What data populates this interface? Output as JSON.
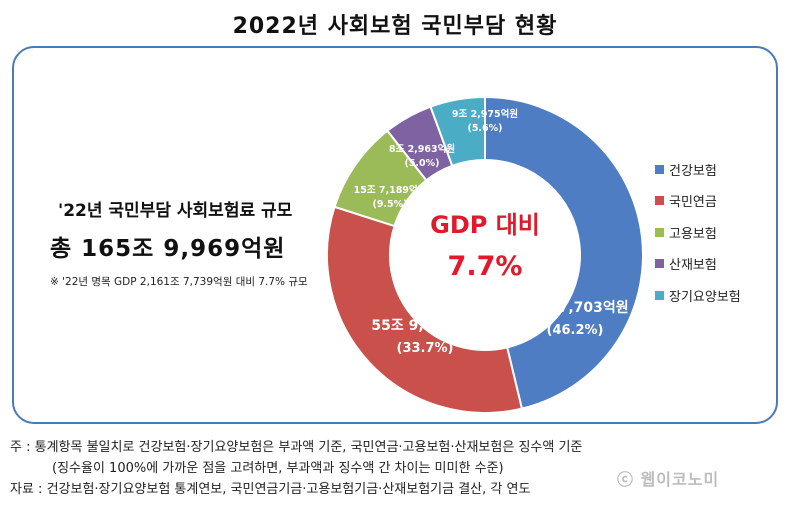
{
  "title": "2022년 사회보험 국민부담 현황",
  "summary": {
    "heading": "'22년 국민부담 사회보험료 규모",
    "total": "총 165조 9,969억원",
    "note": "※ '22년 명목 GDP 2,161조 7,739억원 대비 7.7% 규모"
  },
  "center_label": {
    "line1": "GDP 대비",
    "line2": "7.7%"
  },
  "footnotes": {
    "note_line1": "주 : 통계항목 불일치로 건강보험·장기요양보험은 부과액 기준, 국민연금·고용보험·산재보험은 징수액 기준",
    "note_line2": "(징수율이 100%에 가까운 점을 고려하면, 부과액과 징수액 간 차이는 미미한 수준)",
    "source": "자료 : 건강보험·장기요양보험 통계연보, 국민연금기금·고용보험기금·산재보험기금 결산, 각 연도"
  },
  "watermark": "ⓒ 웹이코노미",
  "chart_data": {
    "type": "pie",
    "donut": true,
    "unit": "억원",
    "categories": [
      "건강보험",
      "국민연금",
      "고용보험",
      "산재보험",
      "장기요양보험"
    ],
    "values": [
      767703,
      559140,
      157189,
      82963,
      92975
    ],
    "percent": [
      46.2,
      33.7,
      9.5,
      5.0,
      5.6
    ],
    "value_labels": [
      "76조 7,703억원",
      "55조 9,140억원",
      "15조 7,189억원",
      "8조 2,963억원",
      "9조 2,975억원"
    ],
    "percent_labels": [
      "(46.2%)",
      "(33.7%)",
      "(9.5%)",
      "(5.0%)",
      "(5.6%)"
    ],
    "colors": [
      "#4f7dc3",
      "#c9504b",
      "#9bbb59",
      "#7f62a2",
      "#4bacc6"
    ],
    "legend_position": "right"
  }
}
